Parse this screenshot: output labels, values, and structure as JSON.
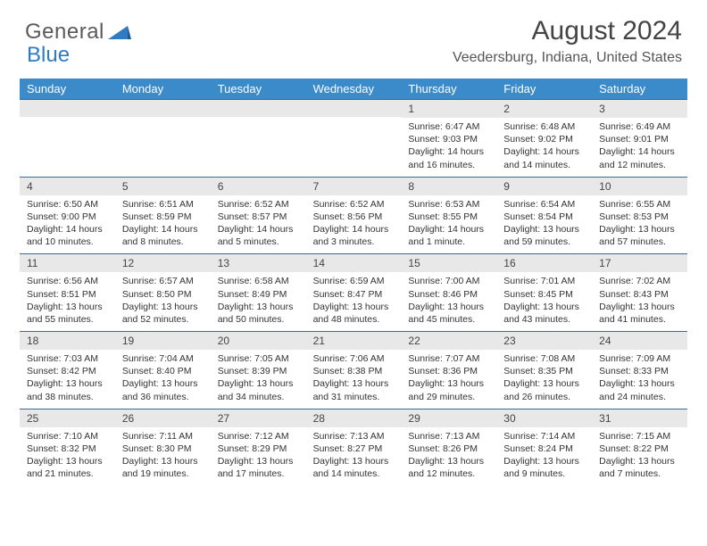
{
  "brand": {
    "part1": "General",
    "part2": "Blue"
  },
  "title": "August 2024",
  "location": "Veedersburg, Indiana, United States",
  "colors": {
    "header_bg": "#3b8bca",
    "header_fg": "#ffffff",
    "rule": "#3b6b94",
    "daynum_bg": "#e8e8e8",
    "text": "#333333",
    "brand_gray": "#5a5a5a",
    "brand_blue": "#2f7cc4"
  },
  "days_of_week": [
    "Sunday",
    "Monday",
    "Tuesday",
    "Wednesday",
    "Thursday",
    "Friday",
    "Saturday"
  ],
  "weeks": [
    [
      {
        "blank": true
      },
      {
        "blank": true
      },
      {
        "blank": true
      },
      {
        "blank": true
      },
      {
        "n": "1",
        "sunrise": "6:47 AM",
        "sunset": "9:03 PM",
        "daylight": "14 hours and 16 minutes."
      },
      {
        "n": "2",
        "sunrise": "6:48 AM",
        "sunset": "9:02 PM",
        "daylight": "14 hours and 14 minutes."
      },
      {
        "n": "3",
        "sunrise": "6:49 AM",
        "sunset": "9:01 PM",
        "daylight": "14 hours and 12 minutes."
      }
    ],
    [
      {
        "n": "4",
        "sunrise": "6:50 AM",
        "sunset": "9:00 PM",
        "daylight": "14 hours and 10 minutes."
      },
      {
        "n": "5",
        "sunrise": "6:51 AM",
        "sunset": "8:59 PM",
        "daylight": "14 hours and 8 minutes."
      },
      {
        "n": "6",
        "sunrise": "6:52 AM",
        "sunset": "8:57 PM",
        "daylight": "14 hours and 5 minutes."
      },
      {
        "n": "7",
        "sunrise": "6:52 AM",
        "sunset": "8:56 PM",
        "daylight": "14 hours and 3 minutes."
      },
      {
        "n": "8",
        "sunrise": "6:53 AM",
        "sunset": "8:55 PM",
        "daylight": "14 hours and 1 minute."
      },
      {
        "n": "9",
        "sunrise": "6:54 AM",
        "sunset": "8:54 PM",
        "daylight": "13 hours and 59 minutes."
      },
      {
        "n": "10",
        "sunrise": "6:55 AM",
        "sunset": "8:53 PM",
        "daylight": "13 hours and 57 minutes."
      }
    ],
    [
      {
        "n": "11",
        "sunrise": "6:56 AM",
        "sunset": "8:51 PM",
        "daylight": "13 hours and 55 minutes."
      },
      {
        "n": "12",
        "sunrise": "6:57 AM",
        "sunset": "8:50 PM",
        "daylight": "13 hours and 52 minutes."
      },
      {
        "n": "13",
        "sunrise": "6:58 AM",
        "sunset": "8:49 PM",
        "daylight": "13 hours and 50 minutes."
      },
      {
        "n": "14",
        "sunrise": "6:59 AM",
        "sunset": "8:47 PM",
        "daylight": "13 hours and 48 minutes."
      },
      {
        "n": "15",
        "sunrise": "7:00 AM",
        "sunset": "8:46 PM",
        "daylight": "13 hours and 45 minutes."
      },
      {
        "n": "16",
        "sunrise": "7:01 AM",
        "sunset": "8:45 PM",
        "daylight": "13 hours and 43 minutes."
      },
      {
        "n": "17",
        "sunrise": "7:02 AM",
        "sunset": "8:43 PM",
        "daylight": "13 hours and 41 minutes."
      }
    ],
    [
      {
        "n": "18",
        "sunrise": "7:03 AM",
        "sunset": "8:42 PM",
        "daylight": "13 hours and 38 minutes."
      },
      {
        "n": "19",
        "sunrise": "7:04 AM",
        "sunset": "8:40 PM",
        "daylight": "13 hours and 36 minutes."
      },
      {
        "n": "20",
        "sunrise": "7:05 AM",
        "sunset": "8:39 PM",
        "daylight": "13 hours and 34 minutes."
      },
      {
        "n": "21",
        "sunrise": "7:06 AM",
        "sunset": "8:38 PM",
        "daylight": "13 hours and 31 minutes."
      },
      {
        "n": "22",
        "sunrise": "7:07 AM",
        "sunset": "8:36 PM",
        "daylight": "13 hours and 29 minutes."
      },
      {
        "n": "23",
        "sunrise": "7:08 AM",
        "sunset": "8:35 PM",
        "daylight": "13 hours and 26 minutes."
      },
      {
        "n": "24",
        "sunrise": "7:09 AM",
        "sunset": "8:33 PM",
        "daylight": "13 hours and 24 minutes."
      }
    ],
    [
      {
        "n": "25",
        "sunrise": "7:10 AM",
        "sunset": "8:32 PM",
        "daylight": "13 hours and 21 minutes."
      },
      {
        "n": "26",
        "sunrise": "7:11 AM",
        "sunset": "8:30 PM",
        "daylight": "13 hours and 19 minutes."
      },
      {
        "n": "27",
        "sunrise": "7:12 AM",
        "sunset": "8:29 PM",
        "daylight": "13 hours and 17 minutes."
      },
      {
        "n": "28",
        "sunrise": "7:13 AM",
        "sunset": "8:27 PM",
        "daylight": "13 hours and 14 minutes."
      },
      {
        "n": "29",
        "sunrise": "7:13 AM",
        "sunset": "8:26 PM",
        "daylight": "13 hours and 12 minutes."
      },
      {
        "n": "30",
        "sunrise": "7:14 AM",
        "sunset": "8:24 PM",
        "daylight": "13 hours and 9 minutes."
      },
      {
        "n": "31",
        "sunrise": "7:15 AM",
        "sunset": "8:22 PM",
        "daylight": "13 hours and 7 minutes."
      }
    ]
  ],
  "labels": {
    "sunrise": "Sunrise:",
    "sunset": "Sunset:",
    "daylight": "Daylight:"
  }
}
